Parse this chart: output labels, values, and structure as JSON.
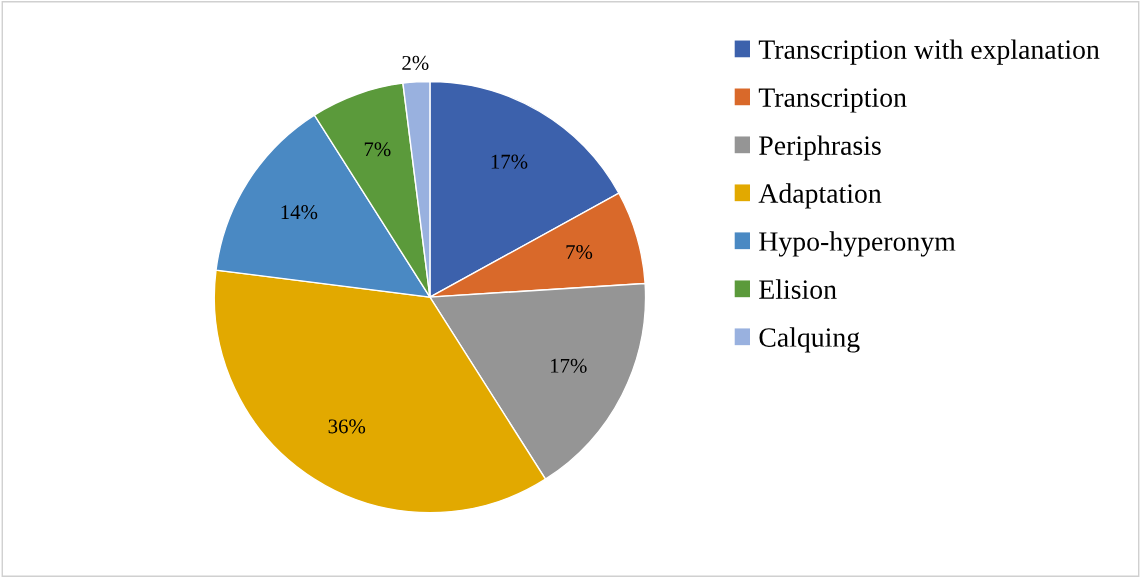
{
  "chart_data": {
    "type": "pie",
    "categories": [
      "Transcription with explanation",
      "Transcription",
      "Periphrasis",
      "Adaptation",
      "Hypo-hyperonym",
      "Elision",
      "Calquing"
    ],
    "values": [
      17,
      7,
      17,
      36,
      14,
      7,
      2
    ],
    "value_labels": [
      "17%",
      "7%",
      "17%",
      "36%",
      "14%",
      "7%",
      "2%"
    ],
    "colors": [
      "#3c61ac",
      "#d9692a",
      "#959595",
      "#e2a900",
      "#4a89c3",
      "#5b9a3b",
      "#99b1df"
    ],
    "legend": "right"
  }
}
